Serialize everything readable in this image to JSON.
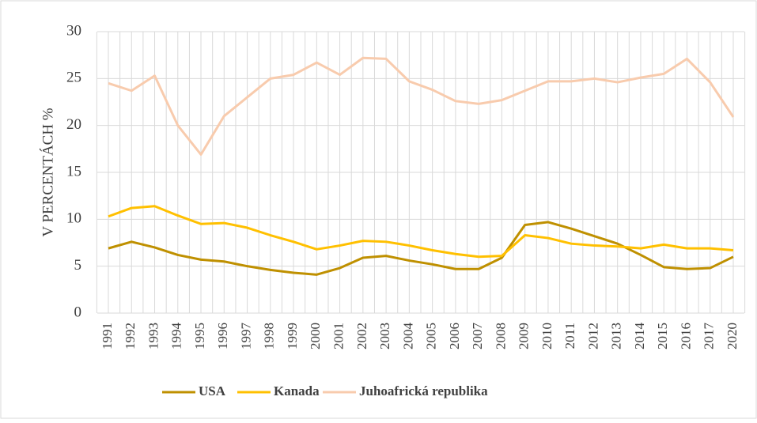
{
  "chart_data": {
    "type": "line",
    "y_label": "V PERCENTÁCH %",
    "categories": [
      "1991",
      "1992",
      "1993",
      "1994",
      "1995",
      "1996",
      "1997",
      "1998",
      "1999",
      "2000",
      "2001",
      "2002",
      "2003",
      "2004",
      "2005",
      "2006",
      "2007",
      "2008",
      "2009",
      "2010",
      "2011",
      "2012",
      "2013",
      "2014",
      "2015",
      "2016",
      "2017",
      "2020"
    ],
    "series": [
      {
        "name": "USA",
        "color": "#bf9000",
        "values": [
          6.9,
          7.6,
          7.0,
          6.2,
          5.7,
          5.5,
          5.0,
          4.6,
          4.3,
          4.1,
          4.8,
          5.9,
          6.1,
          5.6,
          5.2,
          4.7,
          4.7,
          5.9,
          9.4,
          9.7,
          9.0,
          8.2,
          7.4,
          6.2,
          4.9,
          4.7,
          4.8,
          6.0
        ]
      },
      {
        "name": "Kanada",
        "color": "#ffc000",
        "values": [
          10.3,
          11.2,
          11.4,
          10.4,
          9.5,
          9.6,
          9.1,
          8.3,
          7.6,
          6.8,
          7.2,
          7.7,
          7.6,
          7.2,
          6.7,
          6.3,
          6.0,
          6.1,
          8.3,
          8.0,
          7.4,
          7.2,
          7.1,
          6.9,
          7.3,
          6.9,
          6.9,
          6.7
        ]
      },
      {
        "name": "Juhoafrická republika",
        "color": "#f8cbad",
        "values": [
          24.5,
          23.7,
          25.3,
          20.0,
          16.9,
          21.0,
          23.0,
          25.0,
          25.4,
          26.7,
          25.4,
          27.2,
          27.1,
          24.7,
          23.8,
          22.6,
          22.3,
          22.7,
          23.7,
          24.7,
          24.7,
          25.0,
          24.6,
          25.1,
          25.5,
          27.1,
          24.6,
          20.9
        ]
      }
    ],
    "ylim": [
      0,
      30
    ],
    "yticks": [
      0,
      5,
      10,
      15,
      20,
      25,
      30
    ],
    "grid": true,
    "legend": "bottom"
  }
}
